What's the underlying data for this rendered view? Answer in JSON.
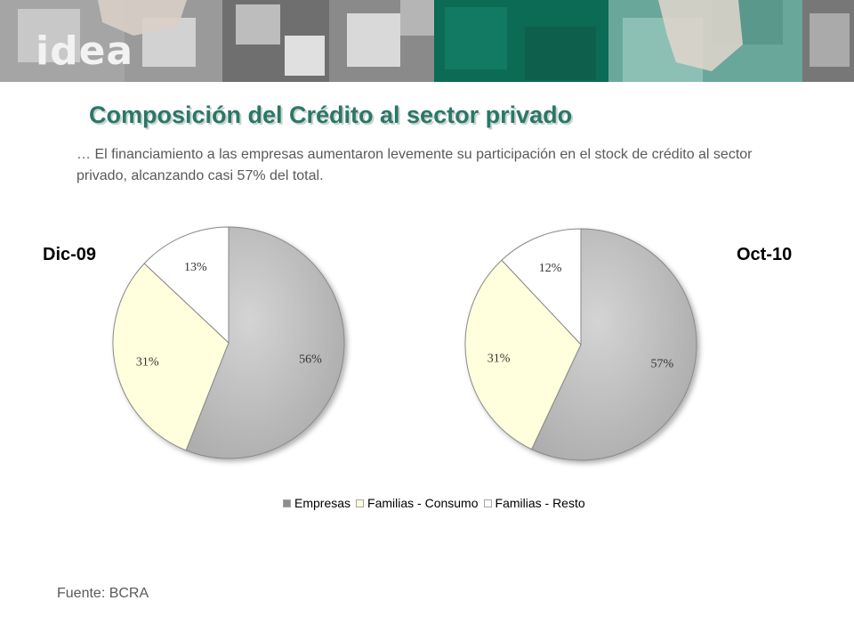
{
  "brand": {
    "logo_text": "idea"
  },
  "slide": {
    "title": "Composición del Crédito al sector privado",
    "subtitle": "… El financiamiento a las empresas aumentaron levemente su participación en el stock de crédito al sector privado, alcanzando casi 57% del total.",
    "source": "Fuente:  BCRA"
  },
  "colors": {
    "title": "#2b7768",
    "empresas": "#c0c0c0",
    "familias_consumo": "#ffffdd",
    "familias_resto": "#ffffff",
    "banner_green": "#0b6b55",
    "banner_teal": "#6aa79b"
  },
  "chart_data": [
    {
      "type": "pie",
      "title": "Dic-09",
      "categories": [
        "Empresas",
        "Familias - Consumo",
        "Familias - Resto"
      ],
      "values": [
        56,
        31,
        13
      ],
      "labels": [
        "56%",
        "31%",
        "13%"
      ],
      "legend": "bottom"
    },
    {
      "type": "pie",
      "title": "Oct-10",
      "categories": [
        "Empresas",
        "Familias - Consumo",
        "Familias - Resto"
      ],
      "values": [
        57,
        31,
        12
      ],
      "labels": [
        "57%",
        "31%",
        "12%"
      ],
      "legend": "bottom"
    }
  ]
}
